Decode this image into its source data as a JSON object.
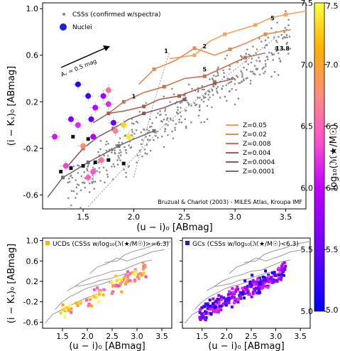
{
  "colorbar": {
    "label": "log₁₀(ℳ★/M☉)",
    "min": 5.0,
    "max": 7.5,
    "ticks": [
      "5.0",
      "5.5",
      "6.0",
      "6.5",
      "7.0",
      "7.5"
    ],
    "colors": [
      "#0000ff",
      "#6a00ff",
      "#c000ff",
      "#ff4fd0",
      "#ff8a80",
      "#ffb000",
      "#ffff40"
    ]
  },
  "chart_data": [
    {
      "type": "scatter",
      "panel": "main",
      "xlabel": "(u − i)₀ [ABmag]",
      "ylabel": "(i − Kₛ)₀ [ABmag]",
      "xlim": [
        1.1,
        3.7
      ],
      "ylim": [
        -0.72,
        1.05
      ],
      "xticks": [
        "1.5",
        "2.0",
        "2.5",
        "3.0",
        "3.5"
      ],
      "yticks": [
        "-0.6",
        "-0.2",
        "0.2",
        "0.6",
        "1.0"
      ],
      "legend_top": [
        "CSSs (confirmed w/spectra)",
        "Nuclei"
      ],
      "arrow_label": "Aᵥ = 0.5 mag",
      "footer": "Bruzual & Charlot (2003) - MILES Atlas, Kroupa IMF",
      "model_legend": [
        {
          "name": "Z=0.05",
          "color": "#f4a460"
        },
        {
          "name": "Z=0.02",
          "color": "#e08a50"
        },
        {
          "name": "Z=0.008",
          "color": "#c87050"
        },
        {
          "name": "Z=0.004",
          "color": "#a85c50"
        },
        {
          "name": "Z=0.0004",
          "color": "#8a5a60"
        },
        {
          "name": "Z=0.0001",
          "color": "#707070"
        }
      ],
      "age_labels": [
        "1",
        "2",
        "5",
        "1",
        "5",
        "13.8"
      ],
      "tracks": [
        {
          "name": "Z=0.05",
          "color": "#f4a460",
          "x": [
            2.35,
            2.6,
            2.75,
            2.9,
            3.05,
            3.2,
            3.35,
            3.5,
            3.7
          ],
          "y": [
            0.57,
            0.6,
            0.72,
            0.78,
            0.82,
            0.86,
            0.92,
            0.95,
            0.98
          ]
        },
        {
          "name": "Z=0.02",
          "color": "#e08a50",
          "x": [
            2.05,
            2.2,
            2.4,
            2.6,
            2.8,
            2.95,
            3.1,
            3.3,
            3.55
          ],
          "y": [
            0.35,
            0.48,
            0.55,
            0.66,
            0.6,
            0.65,
            0.7,
            0.78,
            0.82
          ]
        },
        {
          "name": "Z=0.008",
          "color": "#c87050",
          "x": [
            1.75,
            1.9,
            2.1,
            2.3,
            2.5,
            2.7,
            2.9,
            3.1,
            3.3
          ],
          "y": [
            0.1,
            0.2,
            0.28,
            0.33,
            0.4,
            0.42,
            0.5,
            0.58,
            0.62
          ]
        },
        {
          "name": "Z=0.004",
          "color": "#a85c50",
          "x": [
            1.6,
            1.75,
            1.9,
            2.1,
            2.25,
            2.45,
            2.6,
            2.8,
            3.0
          ],
          "y": [
            0.02,
            0.1,
            0.12,
            0.16,
            0.22,
            0.25,
            0.3,
            0.36,
            0.4
          ]
        },
        {
          "name": "Z=0.0004",
          "color": "#8a5a60",
          "x": [
            1.35,
            1.5,
            1.65,
            1.8,
            1.95,
            2.1,
            2.3,
            2.5
          ],
          "y": [
            -0.35,
            -0.2,
            -0.1,
            -0.03,
            0.05,
            0.1,
            0.15,
            0.22
          ]
        },
        {
          "name": "Z=0.0001",
          "color": "#707070",
          "x": [
            1.15,
            1.3,
            1.4,
            1.55,
            1.7,
            1.85,
            2.0,
            2.2
          ],
          "y": [
            -0.62,
            -0.45,
            -0.4,
            -0.32,
            -0.25,
            -0.18,
            -0.12,
            -0.05
          ]
        }
      ],
      "nuclei": {
        "x": [
          1.22,
          1.33,
          1.38,
          1.45,
          1.5,
          1.58,
          1.55,
          1.62,
          1.7,
          1.75,
          1.8,
          1.9,
          1.55,
          1.6,
          1.68,
          1.45,
          1.6,
          1.75,
          1.82,
          1.95
        ],
        "y": [
          -0.1,
          -0.35,
          0.05,
          0.0,
          -0.18,
          0.05,
          0.25,
          0.15,
          0.25,
          0.3,
          0.02,
          0.0,
          -0.45,
          -0.4,
          -0.3,
          0.35,
          -0.1,
          0.18,
          -0.05,
          -0.1
        ],
        "mass": [
          6.1,
          6.3,
          5.6,
          6.2,
          6.8,
          5.4,
          5.3,
          6.0,
          5.8,
          6.6,
          5.5,
          7.3,
          6.5,
          6.4,
          6.6,
          5.2,
          5.9,
          6.2,
          6.7,
          7.4
        ]
      }
    },
    {
      "type": "scatter",
      "panel": "bottom-left",
      "title": "UCDs (CSSs w/log₁₀(ℳ★/M☉)>=6.3)",
      "xlabel": "(u − i)₀ [ABmag]",
      "ylabel": "(i − Kₛ)₀ [ABmag]",
      "xlim": [
        1.1,
        3.7
      ],
      "ylim": [
        -0.72,
        1.05
      ],
      "xticks": [
        "1.5",
        "2.0",
        "2.5",
        "3.0",
        "3.5"
      ],
      "yticks": [
        "-0.6",
        "-0.2",
        "0.2",
        "0.6",
        "1.0"
      ]
    },
    {
      "type": "scatter",
      "panel": "bottom-right",
      "title": "GCs (CSSs w/log₁₀(ℳ★/M☉)<6.3)",
      "xlabel": "(u − i)₀ [ABmag]",
      "xlim": [
        1.1,
        3.7
      ],
      "ylim": [
        -0.72,
        1.05
      ],
      "xticks": [
        "1.5",
        "2.0",
        "2.5",
        "3.0",
        "3.5"
      ]
    }
  ]
}
